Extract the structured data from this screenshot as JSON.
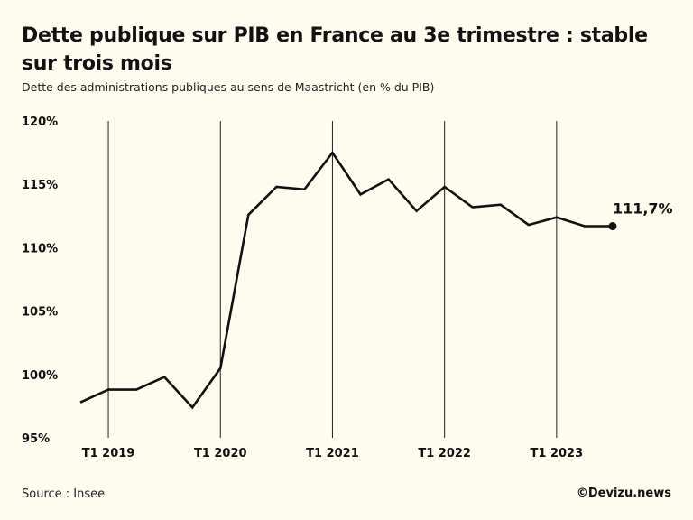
{
  "title": "Dette publique sur PIB en France au 3e trimestre : stable sur trois mois",
  "subtitle": "Dette des administrations publiques au sens de Maastricht (en % du PIB)",
  "source": "Source : Insee",
  "credit": "©Devizu.news",
  "colors": {
    "background": "#fefbef",
    "line": "#111111",
    "gridline": "#222222"
  },
  "chart_data": {
    "type": "line",
    "title": "Dette publique sur PIB en France au 3e trimestre : stable sur trois mois",
    "subtitle": "Dette des administrations publiques au sens de Maastricht (en % du PIB)",
    "xlabel": "",
    "ylabel": "",
    "ylim": [
      95,
      120
    ],
    "y_ticks": [
      95,
      100,
      105,
      110,
      115,
      120
    ],
    "y_tick_labels": [
      "95%",
      "100%",
      "105%",
      "110%",
      "115%",
      "120%"
    ],
    "x_ticks": [
      {
        "label": "T1 2019",
        "period": "2019-Q1"
      },
      {
        "label": "T1 2020",
        "period": "2020-Q1"
      },
      {
        "label": "T1 2021",
        "period": "2021-Q1"
      },
      {
        "label": "T1 2022",
        "period": "2022-Q1"
      },
      {
        "label": "T1 2023",
        "period": "2023-Q1"
      }
    ],
    "x": [
      "2018-Q4",
      "2019-Q1",
      "2019-Q2",
      "2019-Q3",
      "2019-Q4",
      "2020-Q1",
      "2020-Q2",
      "2020-Q3",
      "2020-Q4",
      "2021-Q1",
      "2021-Q2",
      "2021-Q3",
      "2021-Q4",
      "2022-Q1",
      "2022-Q2",
      "2022-Q3",
      "2022-Q4",
      "2023-Q1",
      "2023-Q2",
      "2023-Q3"
    ],
    "series": [
      {
        "values": [
          97.8,
          98.8,
          98.8,
          99.8,
          97.4,
          100.5,
          112.6,
          114.8,
          114.6,
          117.5,
          114.2,
          115.4,
          112.9,
          114.8,
          113.2,
          113.4,
          111.8,
          112.4,
          111.7,
          111.7
        ]
      }
    ],
    "end_label": "111,7%",
    "grid": "vertical lines at T1 ticks",
    "legend": "none"
  }
}
